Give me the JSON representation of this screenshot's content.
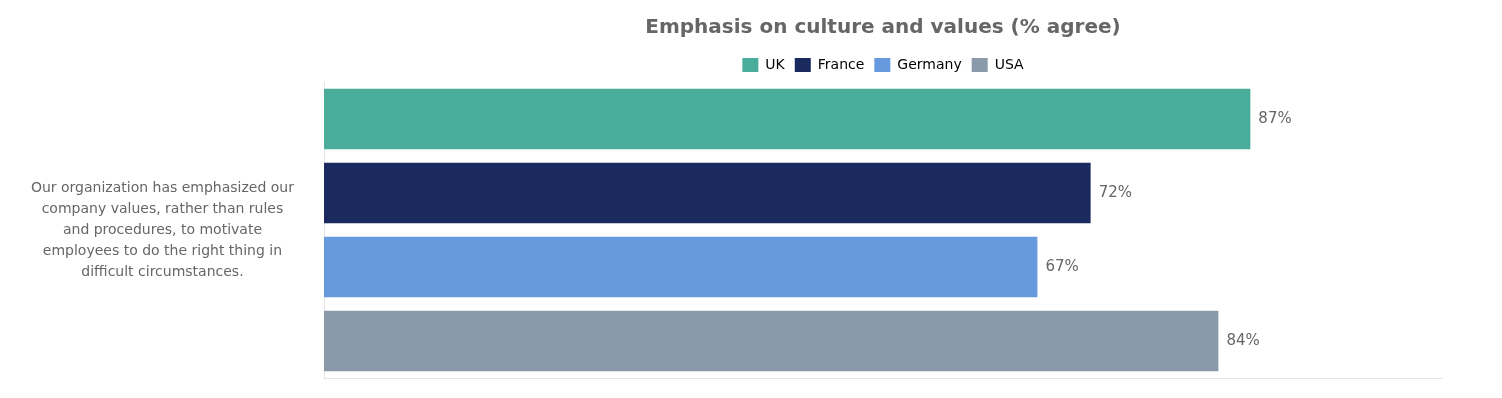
{
  "chart_data": {
    "type": "bar",
    "orientation": "horizontal",
    "title": "Emphasis on culture and values (% agree)",
    "ylabel": [
      "Our organization has emphasized our",
      "company values, rather than rules",
      "and procedures, to motivate",
      "employees to do the right thing in",
      "difficult circumstances."
    ],
    "categories": [
      "UK",
      "France",
      "Germany",
      "USA"
    ],
    "values": [
      87,
      72,
      67,
      84
    ],
    "value_labels": [
      "87%",
      "72%",
      "67%",
      "84%"
    ],
    "colors": [
      "#4aac9b",
      "#1a2a5e",
      "#6699dd",
      "#8a9aaa"
    ],
    "xlim": [
      0,
      105
    ],
    "tick_labels": false,
    "grid": false,
    "legend": "top",
    "data_labels": true
  }
}
